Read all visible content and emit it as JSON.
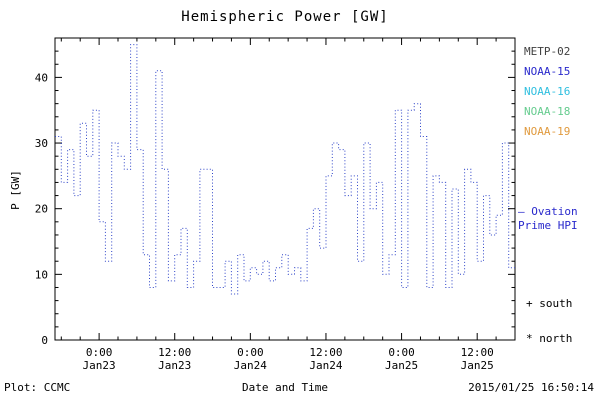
{
  "title": "Hemispheric Power [GW]",
  "axis": {
    "ylabel": "P [GW]"
  },
  "legend": {
    "items": [
      {
        "label": "METP-02",
        "color": "#404040"
      },
      {
        "label": "NOAA-15",
        "color": "#2929cc"
      },
      {
        "label": "NOAA-16",
        "color": "#2fbfdf"
      },
      {
        "label": "NOAA-18",
        "color": "#66cc8f"
      },
      {
        "label": "NOAA-19",
        "color": "#e09a3e"
      }
    ]
  },
  "annotations": {
    "ovation_line1": "– Ovation",
    "ovation_line2": "Prime HPI",
    "ovation_color": "#2929cc",
    "south_marker": "+ south",
    "north_marker": "* north"
  },
  "footer": {
    "plot_credit": "Plot: CCMC",
    "xaxis_label": "Date and Time",
    "timestamp": "2015/01/25 16:50:14"
  },
  "chart_data": {
    "type": "line",
    "title": "Hemispheric Power [GW]",
    "xlabel": "Date and Time",
    "ylabel": "P [GW]",
    "ylim": [
      0,
      46
    ],
    "xlim_hours": [
      0,
      73
    ],
    "grid": false,
    "legend_position": "right",
    "y_major_ticks": [
      0,
      10,
      20,
      30,
      40
    ],
    "x_major_ticks": [
      {
        "hour": 7,
        "line1": "0:00",
        "line2": "Jan23"
      },
      {
        "hour": 19,
        "line1": "12:00",
        "line2": "Jan23"
      },
      {
        "hour": 31,
        "line1": "0:00",
        "line2": "Jan24"
      },
      {
        "hour": 43,
        "line1": "12:00",
        "line2": "Jan24"
      },
      {
        "hour": 55,
        "line1": "0:00",
        "line2": "Jan25"
      },
      {
        "hour": 67,
        "line1": "12:00",
        "line2": "Jan25"
      }
    ],
    "series": [
      {
        "name": "Ovation Prime HPI",
        "color": "#2d43c8",
        "style": "dotted-step",
        "step_hours": 1,
        "x": [
          0,
          1,
          2,
          3,
          4,
          5,
          6,
          7,
          8,
          9,
          10,
          11,
          12,
          13,
          14,
          15,
          16,
          17,
          18,
          19,
          20,
          21,
          22,
          23,
          24,
          25,
          26,
          27,
          28,
          29,
          30,
          31,
          32,
          33,
          34,
          35,
          36,
          37,
          38,
          39,
          40,
          41,
          42,
          43,
          44,
          45,
          46,
          47,
          48,
          49,
          50,
          51,
          52,
          53,
          54,
          55,
          56,
          57,
          58,
          59,
          60,
          61,
          62,
          63,
          64,
          65,
          66,
          67,
          68,
          69,
          70,
          71,
          72
        ],
        "y": [
          31,
          24,
          29,
          22,
          33,
          28,
          35,
          18,
          12,
          30,
          28,
          26,
          45,
          29,
          13,
          8,
          41,
          26,
          9,
          13,
          17,
          8,
          12,
          26,
          26,
          8,
          8,
          12,
          7,
          13,
          9,
          11,
          10,
          12,
          9,
          11,
          13,
          10,
          11,
          9,
          17,
          20,
          14,
          25,
          30,
          29,
          22,
          25,
          12,
          30,
          20,
          24,
          10,
          13,
          35,
          8,
          35,
          36,
          31,
          8,
          25,
          24,
          8,
          23,
          10,
          26,
          24,
          12,
          22,
          16,
          19,
          30,
          11
        ]
      }
    ]
  }
}
